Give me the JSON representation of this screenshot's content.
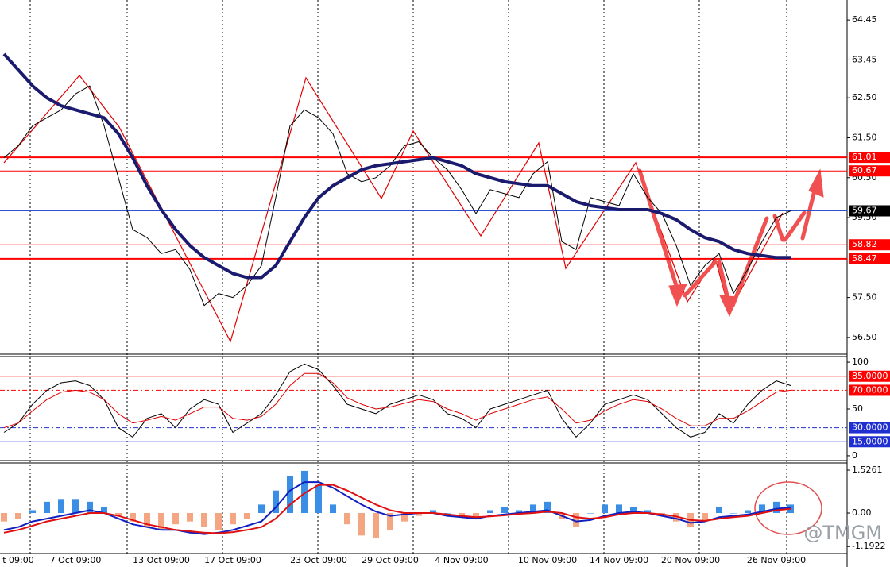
{
  "chart_data": [
    {
      "type": "line",
      "categories": [
        null,
        "t 09:00",
        null,
        null,
        null,
        "7 Oct 09:00",
        null,
        null,
        null,
        null,
        null,
        "13 Oct 09:00",
        null,
        null,
        null,
        null,
        "17 Oct 09:00",
        null,
        null,
        null,
        null,
        null,
        "23 Oct 09:00",
        null,
        null,
        null,
        null,
        "29 Oct 09:00",
        null,
        null,
        null,
        null,
        "4 Nov 09:00",
        null,
        null,
        null,
        null,
        null,
        "10 Nov 09:00",
        null,
        null,
        null,
        null,
        "14 Nov 09:00",
        null,
        null,
        null,
        null,
        "20 Nov 09:00",
        null,
        null,
        null,
        null,
        null,
        "26 Nov 09:00",
        null
      ],
      "series": [
        {
          "color": "#000000",
          "style": "line",
          "width": 1,
          "values": [
            61.0,
            61.3,
            61.8,
            62.0,
            62.2,
            62.6,
            62.8,
            61.8,
            60.5,
            59.2,
            59.0,
            58.6,
            58.7,
            58.2,
            57.3,
            57.6,
            57.5,
            57.8,
            58.3,
            60.0,
            61.8,
            62.2,
            62.0,
            61.6,
            60.6,
            60.4,
            60.5,
            60.8,
            61.3,
            61.4,
            61.0,
            60.7,
            60.2,
            59.6,
            60.2,
            60.1,
            60.0,
            60.6,
            60.9,
            58.9,
            58.7,
            60.0,
            59.9,
            59.8,
            60.6,
            60.0,
            59.6,
            58.8,
            57.8,
            58.3,
            58.6,
            57.6,
            58.2,
            58.9,
            59.5,
            59.67
          ]
        },
        {
          "color": "#1a1a6e",
          "style": "line",
          "width": 4,
          "values": [
            63.6,
            63.2,
            62.8,
            62.5,
            62.3,
            62.2,
            62.1,
            62.0,
            61.6,
            61.0,
            60.3,
            59.7,
            59.2,
            58.8,
            58.5,
            58.3,
            58.1,
            58.0,
            58.0,
            58.3,
            58.9,
            59.5,
            60.0,
            60.3,
            60.5,
            60.7,
            60.8,
            60.85,
            60.9,
            60.95,
            61.0,
            60.9,
            60.8,
            60.6,
            60.5,
            60.4,
            60.35,
            60.3,
            60.3,
            60.1,
            59.9,
            59.8,
            59.75,
            59.7,
            59.7,
            59.7,
            59.6,
            59.45,
            59.2,
            59.0,
            58.9,
            58.7,
            58.6,
            58.55,
            58.5,
            58.5
          ]
        }
      ],
      "ylim": [
        56.1,
        64.95
      ],
      "yticks": [
        {
          "value": 56.5,
          "label": "56.50"
        },
        {
          "value": 57.5,
          "label": "57.50"
        },
        {
          "value": 59.5,
          "label": "59.50"
        },
        {
          "value": 60.5,
          "label": "60.50"
        },
        {
          "value": 61.5,
          "label": "61.50"
        },
        {
          "value": 62.5,
          "label": "62.50"
        },
        63.45,
        64.45
      ],
      "levels": [
        {
          "value": 61.01,
          "color": "#ff0000",
          "dash": "solid",
          "width": 2
        },
        {
          "value": 60.67,
          "color": "#ff0000",
          "dash": "solid",
          "width": 1
        },
        {
          "value": 59.67,
          "color": "#000000",
          "line": "#3050d0",
          "dash": "solid",
          "width": 1
        },
        {
          "value": 58.82,
          "color": "#ff0000",
          "dash": "solid",
          "width": 1
        },
        {
          "value": 58.47,
          "color": "#ff0000",
          "dash": "solid",
          "width": 2
        }
      ]
    },
    {
      "type": "line",
      "series": [
        {
          "color": "#000000",
          "style": "line",
          "width": 1,
          "values": [
            25,
            35,
            55,
            70,
            78,
            80,
            75,
            60,
            30,
            20,
            40,
            45,
            30,
            50,
            60,
            55,
            25,
            35,
            45,
            65,
            90,
            98,
            92,
            75,
            55,
            50,
            45,
            55,
            60,
            65,
            60,
            45,
            40,
            30,
            50,
            55,
            60,
            65,
            70,
            40,
            20,
            35,
            55,
            60,
            65,
            60,
            45,
            30,
            20,
            25,
            45,
            35,
            55,
            70,
            80,
            75
          ]
        },
        {
          "color": "#e00000",
          "style": "line",
          "width": 1,
          "values": [
            30,
            35,
            48,
            60,
            68,
            70,
            68,
            60,
            45,
            35,
            38,
            42,
            38,
            45,
            52,
            52,
            40,
            38,
            42,
            55,
            75,
            88,
            88,
            78,
            62,
            55,
            50,
            52,
            56,
            60,
            58,
            50,
            45,
            38,
            45,
            50,
            55,
            60,
            63,
            50,
            35,
            38,
            48,
            55,
            60,
            58,
            50,
            40,
            32,
            32,
            40,
            40,
            48,
            58,
            68,
            70
          ]
        }
      ],
      "ylim": [
        -4.3,
        106
      ],
      "yticks": [
        0,
        50,
        100
      ],
      "levels": [
        {
          "value": 85,
          "label": "85.0000",
          "color": "#ff0000",
          "dash": "solid",
          "width": 1
        },
        {
          "value": 70,
          "label": "70.0000",
          "color": "#ff0000",
          "dash": "dashdot",
          "width": 1
        },
        {
          "value": 30,
          "label": "30.0000",
          "color": "#2030d0",
          "dash": "dashdot",
          "width": 1
        },
        {
          "value": 15,
          "label": "15.0000",
          "color": "#2030d0",
          "dash": "solid",
          "width": 1
        }
      ]
    },
    {
      "type": "combo",
      "series": [
        {
          "style": "bar",
          "color": "#3a8ee6",
          "negative_color": "#f4a582",
          "values": [
            -0.3,
            -0.2,
            0.1,
            0.4,
            0.5,
            0.5,
            0.4,
            0.2,
            -0.1,
            -0.3,
            -0.5,
            -0.6,
            -0.4,
            -0.3,
            -0.5,
            -0.6,
            -0.4,
            -0.2,
            0.3,
            0.8,
            1.3,
            1.5,
            1.0,
            0.3,
            -0.4,
            -0.8,
            -0.9,
            -0.6,
            -0.3,
            -0.1,
            0.1,
            0.0,
            -0.1,
            -0.2,
            0.1,
            0.2,
            0.1,
            0.3,
            0.4,
            -0.2,
            -0.5,
            0.0,
            0.3,
            0.3,
            0.2,
            0.1,
            -0.1,
            -0.3,
            -0.5,
            -0.3,
            0.2,
            0.0,
            0.1,
            0.3,
            0.4,
            0.3
          ]
        },
        {
          "style": "line",
          "color": "#1020c0",
          "width": 2,
          "values": [
            -0.6,
            -0.5,
            -0.3,
            -0.2,
            -0.1,
            0.0,
            0.1,
            0.0,
            -0.2,
            -0.4,
            -0.5,
            -0.6,
            -0.6,
            -0.7,
            -0.75,
            -0.7,
            -0.6,
            -0.45,
            -0.3,
            0.2,
            0.8,
            1.1,
            1.1,
            0.9,
            0.6,
            0.3,
            0.05,
            -0.1,
            -0.05,
            0.0,
            0.0,
            -0.1,
            -0.15,
            -0.2,
            -0.1,
            -0.05,
            0.0,
            0.05,
            0.1,
            -0.1,
            -0.3,
            -0.25,
            -0.1,
            0.0,
            0.05,
            0.0,
            -0.1,
            -0.2,
            -0.35,
            -0.3,
            -0.15,
            -0.1,
            -0.05,
            0.05,
            0.15,
            0.2
          ]
        },
        {
          "style": "line",
          "color": "#e01010",
          "width": 2,
          "values": [
            -0.7,
            -0.6,
            -0.45,
            -0.3,
            -0.2,
            -0.1,
            0.0,
            0.0,
            -0.1,
            -0.25,
            -0.4,
            -0.5,
            -0.6,
            -0.65,
            -0.7,
            -0.72,
            -0.68,
            -0.6,
            -0.5,
            -0.2,
            0.3,
            0.7,
            1.0,
            1.0,
            0.8,
            0.55,
            0.3,
            0.1,
            0.0,
            0.0,
            0.0,
            -0.05,
            -0.1,
            -0.15,
            -0.12,
            -0.08,
            -0.03,
            0.0,
            0.05,
            0.0,
            -0.15,
            -0.2,
            -0.15,
            -0.05,
            0.0,
            0.0,
            -0.05,
            -0.12,
            -0.25,
            -0.28,
            -0.2,
            -0.15,
            -0.1,
            0.0,
            0.1,
            0.15
          ]
        }
      ],
      "ylim": [
        -1.44,
        1.78
      ],
      "yticks": [
        -1.1922,
        {
          "value": 0,
          "label": "0.00"
        },
        1.5261
      ]
    }
  ],
  "watermark": "@TMGM"
}
